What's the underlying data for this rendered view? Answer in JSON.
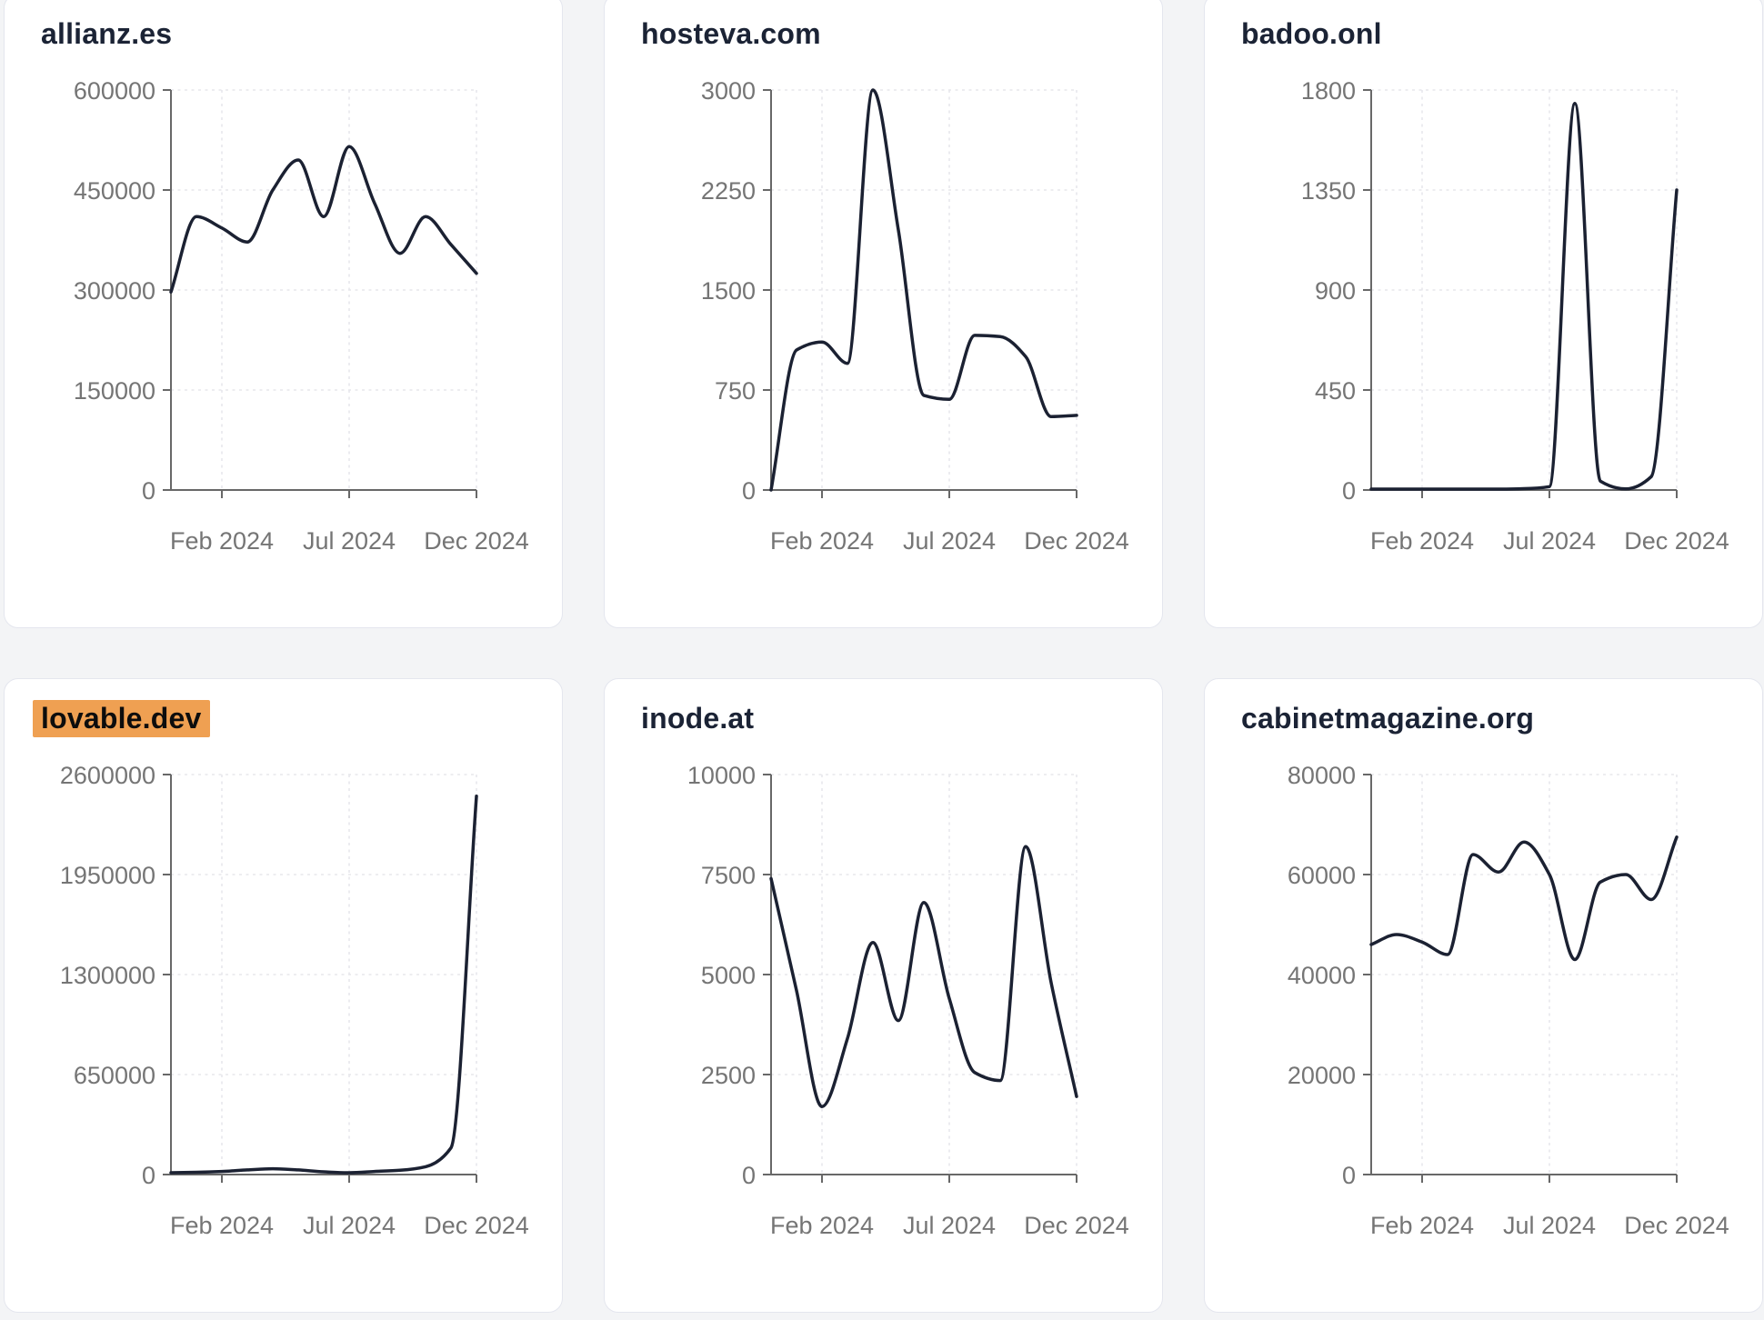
{
  "page": {
    "background": "#f3f4f6"
  },
  "theme": {
    "card_background": "#ffffff",
    "card_border": "#e4e6ee",
    "title_color": "#1b2335",
    "line_color": "#1b2132",
    "axis_color": "#686868",
    "tick_label_color": "#757575",
    "gridline_color": "#e7e7ec",
    "highlight_background": "#efa052",
    "highlight_text_color": "#0d0d0d"
  },
  "x_axis": {
    "months": [
      "Dec 2023",
      "Jan 2024",
      "Feb 2024",
      "Mar 2024",
      "Apr 2024",
      "May 2024",
      "Jun 2024",
      "Jul 2024",
      "Aug 2024",
      "Sep 2024",
      "Oct 2024",
      "Nov 2024",
      "Dec 2024"
    ],
    "tick_indices": [
      2,
      7,
      12
    ],
    "tick_labels": [
      "Feb 2024",
      "Jul 2024",
      "Dec 2024"
    ]
  },
  "chart_data": [
    {
      "type": "line",
      "title": "allianz.es",
      "highlighted": false,
      "ylim": [
        0,
        600000
      ],
      "y_ticks": [
        0,
        150000,
        300000,
        450000,
        600000
      ],
      "values": [
        297000,
        410000,
        393000,
        372000,
        450000,
        495000,
        410000,
        515000,
        430000,
        355000,
        410000,
        368000,
        325000
      ]
    },
    {
      "type": "line",
      "title": "hosteva.com",
      "highlighted": false,
      "ylim": [
        0,
        3000
      ],
      "y_ticks": [
        0,
        750,
        1500,
        2250,
        3000
      ],
      "values": [
        0,
        1050,
        1110,
        950,
        3000,
        1950,
        710,
        680,
        1160,
        1150,
        1000,
        550,
        560
      ]
    },
    {
      "type": "line",
      "title": "badoo.onl",
      "highlighted": false,
      "ylim": [
        0,
        1800
      ],
      "y_ticks": [
        0,
        450,
        900,
        1350,
        1800
      ],
      "values": [
        4,
        4,
        4,
        4,
        4,
        4,
        6,
        15,
        1740,
        40,
        5,
        60,
        1350
      ]
    },
    {
      "type": "line",
      "title": "lovable.dev",
      "highlighted": true,
      "ylim": [
        0,
        2600000
      ],
      "y_ticks": [
        0,
        650000,
        1300000,
        1950000,
        2600000
      ],
      "values": [
        12000,
        15000,
        20000,
        30000,
        38000,
        30000,
        18000,
        12000,
        20000,
        28000,
        51000,
        174000,
        2460000
      ]
    },
    {
      "type": "line",
      "title": "inode.at",
      "highlighted": false,
      "ylim": [
        0,
        10000
      ],
      "y_ticks": [
        0,
        2500,
        5000,
        7500,
        10000
      ],
      "values": [
        7400,
        4600,
        1700,
        3400,
        5800,
        3850,
        6800,
        4400,
        2550,
        2350,
        8200,
        4800,
        1950
      ]
    },
    {
      "type": "line",
      "title": "cabinetmagazine.org",
      "highlighted": false,
      "ylim": [
        0,
        80000
      ],
      "y_ticks": [
        0,
        20000,
        40000,
        60000,
        80000
      ],
      "values": [
        46000,
        48000,
        46500,
        44000,
        64000,
        60500,
        66500,
        60000,
        43000,
        58500,
        60000,
        55000,
        67500
      ]
    }
  ]
}
